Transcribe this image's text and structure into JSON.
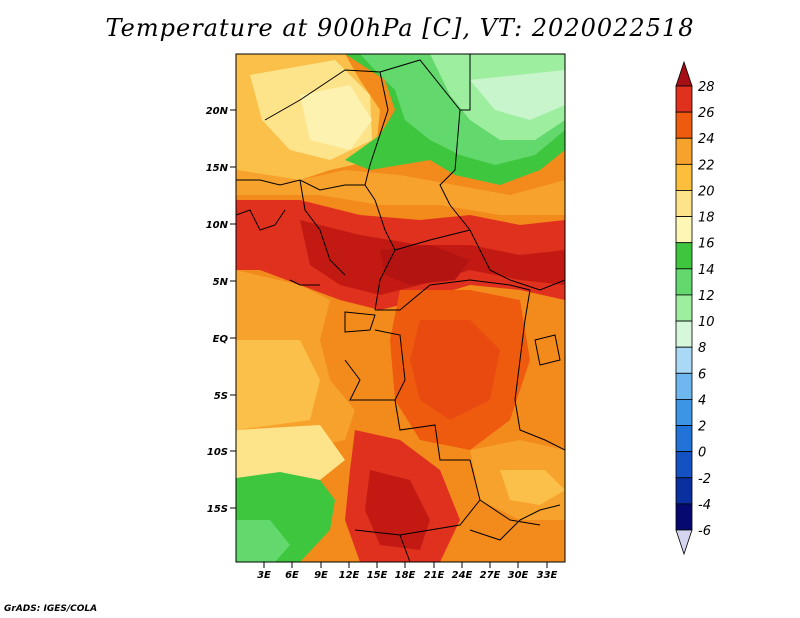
{
  "title": "Temperature at 900hPa [C], VT: 2020022518",
  "credit": "GrADS: IGES/COLA",
  "map": {
    "lat_ticks": [
      "20N",
      "15N",
      "10N",
      "5N",
      "EQ",
      "5S",
      "10S",
      "15S"
    ],
    "lon_ticks": [
      "3E",
      "6E",
      "9E",
      "12E",
      "15E",
      "18E",
      "21E",
      "24E",
      "27E",
      "30E",
      "33E"
    ]
  },
  "colorbar": {
    "labels": [
      "28",
      "26",
      "24",
      "22",
      "20",
      "18",
      "16",
      "14",
      "12",
      "10",
      "8",
      "6",
      "4",
      "2",
      "0",
      "-2",
      "-4",
      "-6"
    ],
    "colors": [
      "#a50f15",
      "#e0301e",
      "#ee5b0e",
      "#f7a22c",
      "#fbbf3d",
      "#fde48a",
      "#fdf6b5",
      "#3fc63f",
      "#63d86d",
      "#9eeea0",
      "#d7f7db",
      "#a9d9f5",
      "#6fb7ef",
      "#3d95e6",
      "#2273d8",
      "#1452c4",
      "#0a30a0",
      "#060a70",
      "#d5d5f0"
    ]
  }
}
